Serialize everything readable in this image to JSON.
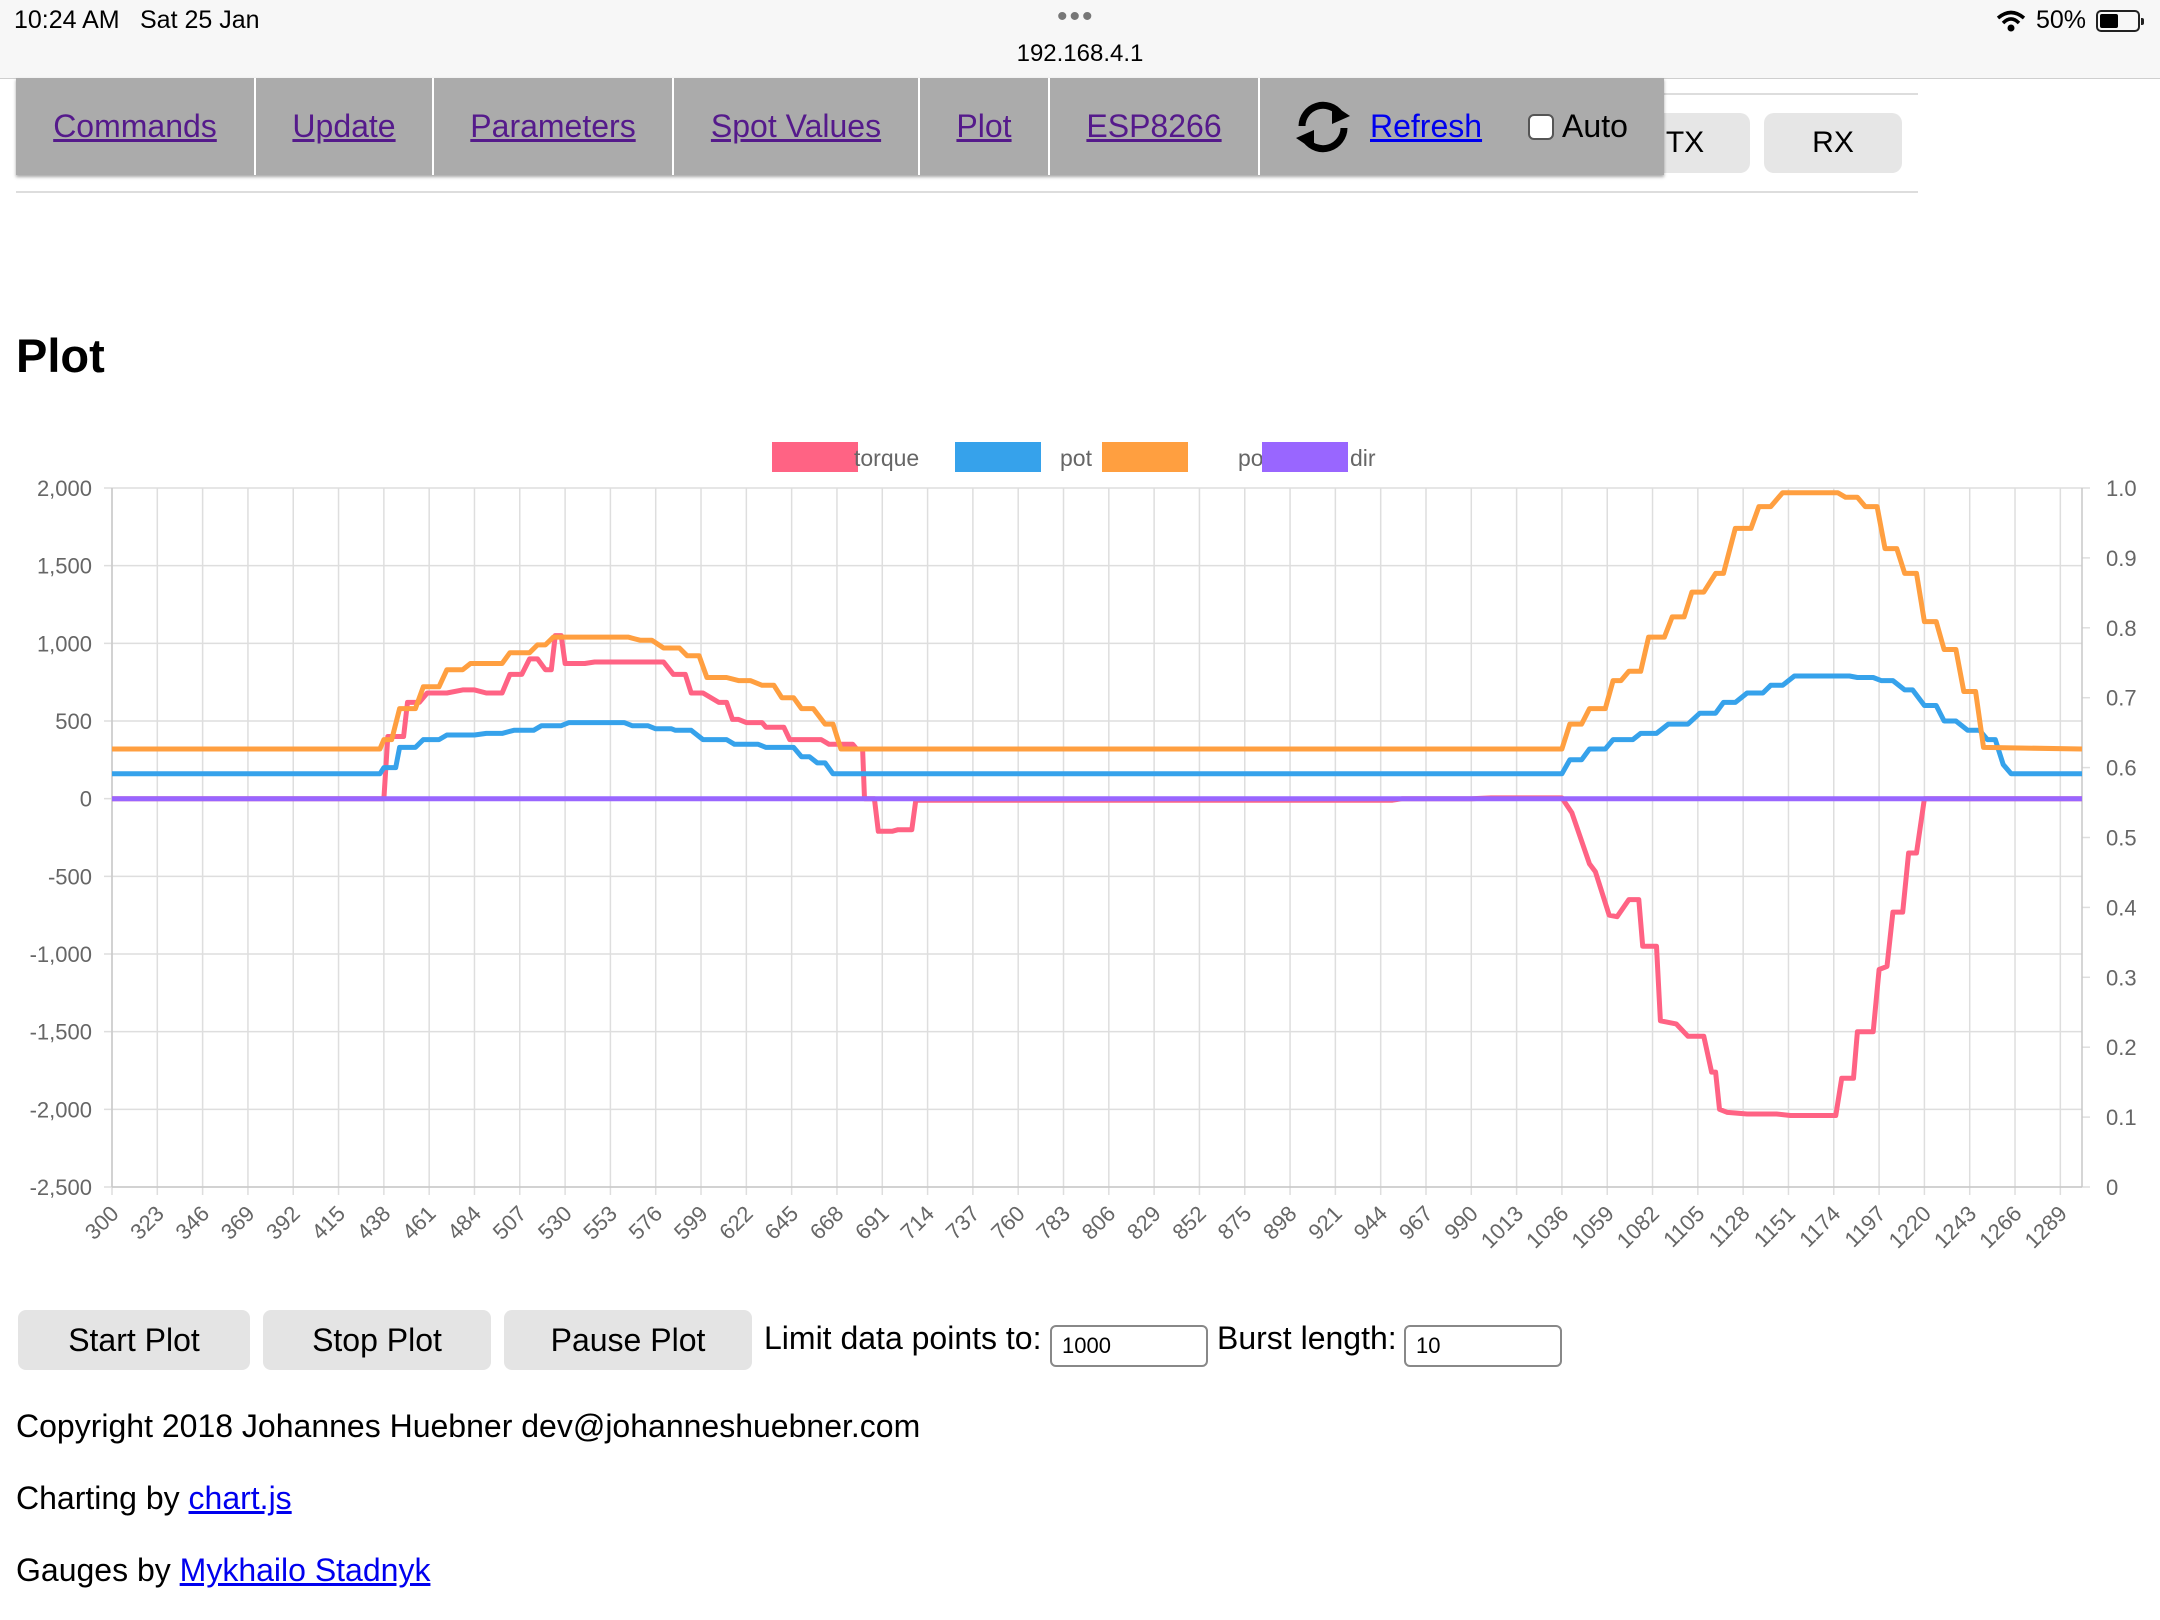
{
  "status_bar": {
    "time": "10:24 AM",
    "date": "Sat 25 Jan",
    "url": "192.168.4.1",
    "battery": "50%",
    "battery_level": 0.5
  },
  "nav": {
    "items": [
      "Commands",
      "Update",
      "Parameters",
      "Spot Values",
      "Plot",
      "ESP8266"
    ],
    "refresh_label": "Refresh",
    "auto_label": "Auto",
    "auto_checked": false
  },
  "tabs": {
    "tx": "TX",
    "rx": "RX"
  },
  "page_title": "Plot",
  "controls": {
    "start": "Start Plot",
    "stop": "Stop Plot",
    "pause": "Pause Plot",
    "limit_label": "Limit data points to:",
    "limit_value": "1000",
    "burst_label": "Burst length:",
    "burst_value": "10"
  },
  "footer": {
    "copyright": "Copyright 2018 Johannes Huebner dev@johanneshuebner.com",
    "charting_prefix": "Charting by ",
    "charting_link": "chart.js",
    "gauges_prefix": "Gauges by ",
    "gauges_link": "Mykhailo Stadnyk"
  },
  "colors": {
    "torque": "#ff6384",
    "pot": "#36a2eb",
    "pot2": "#ff9f40",
    "dir": "#9966ff",
    "menubar": "#ababab"
  },
  "chart_data": {
    "type": "line",
    "step": true,
    "x": {
      "min": 300,
      "max": 1300,
      "tick_labels": [
        300,
        323,
        346,
        369,
        392,
        415,
        438,
        461,
        484,
        507,
        530,
        553,
        576,
        599,
        622,
        645,
        668,
        691,
        714,
        737,
        760,
        783,
        806,
        829,
        852,
        875,
        898,
        921,
        944,
        967,
        990,
        1013,
        1036,
        1059,
        1082,
        1105,
        1128,
        1151,
        1174,
        1197,
        1220,
        1243,
        1266,
        1289
      ]
    },
    "y_left": {
      "min": -2500,
      "max": 2000,
      "ticks": [
        "2,000",
        "1,500",
        "1,000",
        "500",
        "0",
        "-500",
        "-1,000",
        "-1,500",
        "-2,000",
        "-2,500"
      ]
    },
    "y_right": {
      "min": 0,
      "max": 1,
      "ticks": [
        "1.0",
        "0.9",
        "0.8",
        "0.7",
        "0.6",
        "0.5",
        "0.4",
        "0.3",
        "0.2",
        "0.1",
        "0"
      ]
    },
    "legend_position": "top",
    "grid": true,
    "series": [
      {
        "name": "torque",
        "axis": "left",
        "points": [
          [
            300,
            0
          ],
          [
            438,
            0
          ],
          [
            440,
            400
          ],
          [
            448,
            400
          ],
          [
            450,
            620
          ],
          [
            456,
            620
          ],
          [
            460,
            680
          ],
          [
            470,
            680
          ],
          [
            478,
            700
          ],
          [
            484,
            700
          ],
          [
            490,
            680
          ],
          [
            498,
            680
          ],
          [
            502,
            800
          ],
          [
            508,
            800
          ],
          [
            512,
            900
          ],
          [
            516,
            900
          ],
          [
            520,
            830
          ],
          [
            523,
            830
          ],
          [
            525,
            1050
          ],
          [
            528,
            1050
          ],
          [
            530,
            870
          ],
          [
            540,
            870
          ],
          [
            545,
            880
          ],
          [
            580,
            880
          ],
          [
            585,
            800
          ],
          [
            591,
            800
          ],
          [
            594,
            680
          ],
          [
            600,
            680
          ],
          [
            608,
            620
          ],
          [
            612,
            620
          ],
          [
            615,
            510
          ],
          [
            618,
            510
          ],
          [
            622,
            490
          ],
          [
            630,
            490
          ],
          [
            632,
            460
          ],
          [
            641,
            460
          ],
          [
            644,
            380
          ],
          [
            660,
            380
          ],
          [
            664,
            350
          ],
          [
            676,
            350
          ],
          [
            678,
            320
          ],
          [
            681,
            320
          ],
          [
            682,
            0
          ],
          [
            687,
            0
          ],
          [
            689,
            -210
          ],
          [
            696,
            -210
          ],
          [
            699,
            -200
          ],
          [
            706,
            -200
          ],
          [
            708,
            -10
          ],
          [
            950,
            -10
          ],
          [
            955,
            0
          ],
          [
            990,
            0
          ],
          [
            1000,
            5
          ],
          [
            1036,
            5
          ],
          [
            1041,
            -90
          ],
          [
            1044,
            -200
          ],
          [
            1050,
            -420
          ],
          [
            1053,
            -470
          ],
          [
            1060,
            -750
          ],
          [
            1064,
            -760
          ],
          [
            1070,
            -650
          ],
          [
            1075,
            -650
          ],
          [
            1077,
            -950
          ],
          [
            1084,
            -950
          ],
          [
            1086,
            -1430
          ],
          [
            1094,
            -1450
          ],
          [
            1100,
            -1530
          ],
          [
            1108,
            -1530
          ],
          [
            1112,
            -1760
          ],
          [
            1114,
            -1760
          ],
          [
            1116,
            -2000
          ],
          [
            1120,
            -2020
          ],
          [
            1130,
            -2030
          ],
          [
            1145,
            -2030
          ],
          [
            1152,
            -2040
          ],
          [
            1175,
            -2040
          ],
          [
            1178,
            -1800
          ],
          [
            1184,
            -1800
          ],
          [
            1186,
            -1500
          ],
          [
            1194,
            -1500
          ],
          [
            1197,
            -1100
          ],
          [
            1201,
            -1080
          ],
          [
            1204,
            -730
          ],
          [
            1209,
            -730
          ],
          [
            1212,
            -350
          ],
          [
            1216,
            -350
          ],
          [
            1220,
            0
          ],
          [
            1300,
            0
          ]
        ]
      },
      {
        "name": "pot",
        "axis": "left",
        "points": [
          [
            300,
            160
          ],
          [
            436,
            160
          ],
          [
            438,
            200
          ],
          [
            444,
            200
          ],
          [
            446,
            330
          ],
          [
            454,
            330
          ],
          [
            458,
            380
          ],
          [
            466,
            380
          ],
          [
            470,
            410
          ],
          [
            484,
            410
          ],
          [
            490,
            420
          ],
          [
            498,
            420
          ],
          [
            504,
            440
          ],
          [
            514,
            440
          ],
          [
            518,
            470
          ],
          [
            528,
            470
          ],
          [
            532,
            490
          ],
          [
            560,
            490
          ],
          [
            564,
            470
          ],
          [
            572,
            470
          ],
          [
            576,
            450
          ],
          [
            584,
            450
          ],
          [
            586,
            440
          ],
          [
            594,
            440
          ],
          [
            600,
            380
          ],
          [
            612,
            380
          ],
          [
            616,
            350
          ],
          [
            628,
            350
          ],
          [
            632,
            330
          ],
          [
            646,
            330
          ],
          [
            650,
            270
          ],
          [
            654,
            270
          ],
          [
            658,
            230
          ],
          [
            662,
            230
          ],
          [
            666,
            160
          ],
          [
            1036,
            160
          ],
          [
            1040,
            250
          ],
          [
            1046,
            250
          ],
          [
            1050,
            320
          ],
          [
            1058,
            320
          ],
          [
            1062,
            380
          ],
          [
            1072,
            380
          ],
          [
            1076,
            420
          ],
          [
            1084,
            420
          ],
          [
            1090,
            480
          ],
          [
            1100,
            480
          ],
          [
            1106,
            550
          ],
          [
            1114,
            550
          ],
          [
            1118,
            620
          ],
          [
            1124,
            620
          ],
          [
            1130,
            680
          ],
          [
            1138,
            680
          ],
          [
            1142,
            730
          ],
          [
            1148,
            730
          ],
          [
            1154,
            790
          ],
          [
            1182,
            790
          ],
          [
            1186,
            780
          ],
          [
            1194,
            780
          ],
          [
            1198,
            760
          ],
          [
            1204,
            760
          ],
          [
            1210,
            700
          ],
          [
            1214,
            700
          ],
          [
            1220,
            600
          ],
          [
            1226,
            600
          ],
          [
            1230,
            500
          ],
          [
            1236,
            500
          ],
          [
            1242,
            440
          ],
          [
            1248,
            440
          ],
          [
            1252,
            380
          ],
          [
            1256,
            380
          ],
          [
            1260,
            220
          ],
          [
            1264,
            160
          ],
          [
            1300,
            160
          ]
        ]
      },
      {
        "name": "pot2",
        "axis": "left",
        "points": [
          [
            300,
            320
          ],
          [
            436,
            320
          ],
          [
            438,
            380
          ],
          [
            442,
            380
          ],
          [
            446,
            580
          ],
          [
            454,
            580
          ],
          [
            458,
            720
          ],
          [
            466,
            720
          ],
          [
            470,
            830
          ],
          [
            478,
            830
          ],
          [
            482,
            870
          ],
          [
            498,
            870
          ],
          [
            502,
            940
          ],
          [
            512,
            940
          ],
          [
            516,
            990
          ],
          [
            520,
            990
          ],
          [
            524,
            1040
          ],
          [
            562,
            1040
          ],
          [
            568,
            1020
          ],
          [
            574,
            1020
          ],
          [
            580,
            970
          ],
          [
            588,
            970
          ],
          [
            592,
            920
          ],
          [
            598,
            920
          ],
          [
            602,
            780
          ],
          [
            612,
            780
          ],
          [
            618,
            760
          ],
          [
            624,
            760
          ],
          [
            630,
            730
          ],
          [
            636,
            730
          ],
          [
            640,
            650
          ],
          [
            646,
            650
          ],
          [
            650,
            580
          ],
          [
            656,
            580
          ],
          [
            662,
            480
          ],
          [
            666,
            480
          ],
          [
            670,
            320
          ],
          [
            1036,
            320
          ],
          [
            1040,
            480
          ],
          [
            1046,
            480
          ],
          [
            1050,
            580
          ],
          [
            1058,
            580
          ],
          [
            1062,
            760
          ],
          [
            1066,
            760
          ],
          [
            1070,
            820
          ],
          [
            1076,
            820
          ],
          [
            1080,
            1040
          ],
          [
            1088,
            1040
          ],
          [
            1092,
            1170
          ],
          [
            1098,
            1170
          ],
          [
            1102,
            1330
          ],
          [
            1108,
            1330
          ],
          [
            1114,
            1450
          ],
          [
            1118,
            1450
          ],
          [
            1124,
            1740
          ],
          [
            1132,
            1740
          ],
          [
            1136,
            1880
          ],
          [
            1142,
            1880
          ],
          [
            1148,
            1970
          ],
          [
            1176,
            1970
          ],
          [
            1180,
            1940
          ],
          [
            1186,
            1940
          ],
          [
            1190,
            1880
          ],
          [
            1196,
            1880
          ],
          [
            1200,
            1610
          ],
          [
            1206,
            1610
          ],
          [
            1210,
            1450
          ],
          [
            1216,
            1450
          ],
          [
            1220,
            1140
          ],
          [
            1226,
            1140
          ],
          [
            1230,
            960
          ],
          [
            1236,
            960
          ],
          [
            1240,
            690
          ],
          [
            1246,
            690
          ],
          [
            1250,
            330
          ],
          [
            1300,
            320
          ]
        ]
      },
      {
        "name": "dir",
        "axis": "left",
        "points": [
          [
            300,
            0
          ],
          [
            1300,
            0
          ]
        ]
      }
    ]
  }
}
